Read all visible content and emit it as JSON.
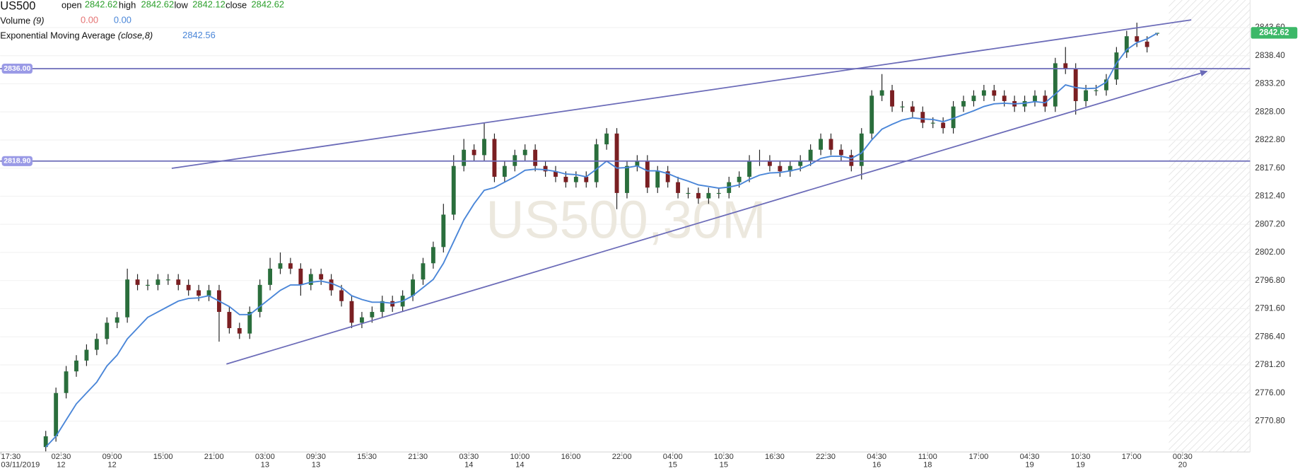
{
  "chart_data": {
    "type": "candlestick",
    "symbol": "US500",
    "watermark": "US500,30M",
    "open_label": "open",
    "high_label": "high",
    "low_label": "low",
    "close_label": "close",
    "up_color": "#2a6e3c",
    "down_color": "#7a1f22",
    "wick_color": "#222222",
    "open": [
      2766,
      2768,
      2776,
      2780,
      2782,
      2784,
      2786,
      2789,
      2790,
      2797,
      2796,
      2796,
      2797,
      2797,
      2796,
      2795,
      2794,
      2795,
      2791,
      2788,
      2787,
      2791,
      2796,
      2799,
      2800,
      2799,
      2796,
      2798,
      2797,
      2795,
      2793,
      2789,
      2790,
      2791,
      2793,
      2792,
      2794,
      2797,
      2800,
      2803,
      2809,
      2818,
      2821,
      2820,
      2823,
      2816,
      2818,
      2820,
      2821,
      2818,
      2817,
      2816,
      2815,
      2816,
      2815,
      2822,
      2824,
      2813,
      2818,
      2819,
      2814,
      2817,
      2815,
      2813,
      2813,
      2812,
      2813,
      2813,
      2815,
      2816,
      2819,
      2819,
      2818,
      2817,
      2818,
      2819,
      2821,
      2823,
      2821,
      2820,
      2818,
      2824,
      2831,
      2832,
      2829,
      2829,
      2828,
      2826,
      2826,
      2825,
      2829,
      2830,
      2831,
      2832,
      2831,
      2830,
      2829,
      2830,
      2831,
      2829,
      2837,
      2836,
      2830,
      2832,
      2832,
      2834,
      2839,
      2842,
      2841,
      2842.62
    ],
    "high": [
      2769,
      2777,
      2781,
      2783,
      2785,
      2787,
      2790,
      2791,
      2799,
      2798,
      2797,
      2798,
      2798,
      2798,
      2797,
      2796,
      2796,
      2796,
      2792,
      2789,
      2792,
      2797,
      2801,
      2802,
      2801,
      2800,
      2799,
      2799,
      2798,
      2796,
      2794,
      2791,
      2792,
      2794,
      2794,
      2795,
      2798,
      2801,
      2804,
      2811,
      2820,
      2823,
      2822,
      2826,
      2824,
      2819,
      2821,
      2822,
      2822,
      2819,
      2818,
      2817,
      2817,
      2817,
      2823,
      2825,
      2825,
      2819,
      2820,
      2820,
      2818,
      2818,
      2816,
      2814,
      2814,
      2814,
      2814,
      2816,
      2817,
      2820,
      2821,
      2820,
      2819,
      2819,
      2820,
      2822,
      2824,
      2824,
      2822,
      2821,
      2825,
      2832,
      2835,
      2833,
      2830,
      2830,
      2829,
      2827,
      2827,
      2830,
      2831,
      2832,
      2833,
      2833,
      2832,
      2831,
      2831,
      2832,
      2832,
      2838,
      2840,
      2837,
      2833,
      2833,
      2835,
      2840,
      2843,
      2844.5,
      2842,
      2842.62
    ],
    "low": [
      2765.2,
      2767,
      2775,
      2779,
      2781,
      2783,
      2785,
      2788,
      2789,
      2795,
      2795,
      2795,
      2796,
      2795,
      2794,
      2793,
      2793,
      2785.5,
      2787,
      2786,
      2786,
      2790,
      2795,
      2798,
      2798,
      2794,
      2795,
      2796,
      2794,
      2792,
      2788,
      2788,
      2789,
      2790,
      2791,
      2791,
      2793,
      2796,
      2799,
      2802,
      2808,
      2817,
      2819,
      2819,
      2815,
      2815,
      2817,
      2819,
      2817,
      2816,
      2815,
      2814,
      2814,
      2814,
      2814,
      2821,
      2810,
      2812,
      2817,
      2813,
      2813,
      2814,
      2812,
      2812,
      2811,
      2811,
      2812,
      2812,
      2814,
      2815,
      2818,
      2817,
      2816,
      2816,
      2817,
      2818,
      2820,
      2820,
      2819,
      2817,
      2815.5,
      2823,
      2830,
      2828,
      2828,
      2827,
      2825,
      2825,
      2824,
      2824,
      2828,
      2829,
      2830,
      2830,
      2829,
      2828,
      2828,
      2829,
      2828,
      2828,
      2835,
      2827.5,
      2829,
      2831,
      2831,
      2833,
      2838,
      2840,
      2839,
      2842.12
    ],
    "close": [
      2768,
      2776,
      2780,
      2782,
      2784,
      2786,
      2789,
      2790,
      2797,
      2796,
      2796,
      2797,
      2797,
      2796,
      2795,
      2794,
      2795,
      2791,
      2788,
      2787,
      2791,
      2796,
      2799,
      2800,
      2799,
      2796,
      2798,
      2797,
      2795,
      2793,
      2789,
      2790,
      2791,
      2793,
      2792,
      2794,
      2797,
      2800,
      2803,
      2809,
      2818,
      2821,
      2820,
      2823,
      2816,
      2818,
      2820,
      2821,
      2818,
      2817,
      2816,
      2815,
      2816,
      2815,
      2822,
      2824,
      2813,
      2818,
      2819,
      2814,
      2817,
      2815,
      2813,
      2813,
      2812,
      2813,
      2813,
      2815,
      2816,
      2819,
      2819,
      2818,
      2817,
      2818,
      2819,
      2821,
      2823,
      2821,
      2820,
      2818,
      2824,
      2831,
      2832,
      2829,
      2829,
      2828,
      2826,
      2826,
      2825,
      2829,
      2830,
      2831,
      2832,
      2831,
      2830,
      2829,
      2830,
      2831,
      2829,
      2837,
      2836,
      2830,
      2832,
      2832,
      2834,
      2839,
      2842,
      2841,
      2840,
      2842.62
    ],
    "volume": {
      "name": "Volume",
      "param": "(9)",
      "printed": [
        "0.00",
        "0.00"
      ]
    },
    "ema": {
      "name": "Exponential Moving Average",
      "param": "(close,8)",
      "color": "#4a86d8",
      "values": [
        2766,
        2768,
        2771,
        2774,
        2776,
        2778,
        2781,
        2783,
        2786,
        2788,
        2790,
        2791,
        2792,
        2793,
        2793.5,
        2793.6,
        2794,
        2793,
        2792,
        2790.5,
        2790.5,
        2792,
        2793.5,
        2795,
        2796,
        2796,
        2796.5,
        2796.7,
        2796.3,
        2795.5,
        2794,
        2793.3,
        2792.8,
        2792.8,
        2792.6,
        2793,
        2794,
        2795.5,
        2797,
        2800,
        2804,
        2808,
        2811,
        2813.5,
        2814,
        2815,
        2816,
        2817.2,
        2817.4,
        2817.3,
        2817,
        2816.5,
        2816.4,
        2816,
        2817.4,
        2818.9,
        2817.6,
        2817.7,
        2818,
        2817.1,
        2817.1,
        2816.6,
        2815.8,
        2815.2,
        2814.5,
        2814.2,
        2813.9,
        2814.1,
        2814.5,
        2815.5,
        2816.3,
        2816.7,
        2816.8,
        2817.1,
        2817.5,
        2818.3,
        2819.4,
        2819.8,
        2819.8,
        2819.4,
        2820.4,
        2822.8,
        2824.8,
        2825.7,
        2826.5,
        2826.9,
        2826.7,
        2826.6,
        2826.2,
        2826.8,
        2827.5,
        2828.2,
        2829,
        2829.5,
        2829.6,
        2829.5,
        2829.6,
        2829.9,
        2829.7,
        2831.3,
        2833,
        2832.5,
        2832.3,
        2832.4,
        2833.5,
        2837,
        2839.5,
        2840.8,
        2841.5,
        2842.56
      ]
    },
    "levels": [
      {
        "value": 2836,
        "label": "2836.00"
      },
      {
        "value": 2818.9,
        "label": "2818.90"
      }
    ],
    "level_color": "#6b6bb8",
    "last_price_color": "#3cb868",
    "ylim": [
      2765.1,
      2848.7
    ],
    "yticks": [
      {
        "value": 2770.8,
        "label": "2770.80"
      },
      {
        "value": 2776,
        "label": "2776.00"
      },
      {
        "value": 2781.2,
        "label": "2781.20"
      },
      {
        "value": 2786.4,
        "label": "2786.40"
      },
      {
        "value": 2791.6,
        "label": "2791.60"
      },
      {
        "value": 2796.8,
        "label": "2796.80"
      },
      {
        "value": 2802,
        "label": "2802.00"
      },
      {
        "value": 2807.2,
        "label": "2807.20"
      },
      {
        "value": 2812.4,
        "label": "2812.40"
      },
      {
        "value": 2817.6,
        "label": "2817.60"
      },
      {
        "value": 2822.8,
        "label": "2822.80"
      },
      {
        "value": 2828,
        "label": "2828.00"
      },
      {
        "value": 2833.2,
        "label": "2833.20"
      },
      {
        "value": 2838.4,
        "label": "2838.40"
      },
      {
        "value": 2843.6,
        "label": "2843.60"
      }
    ],
    "x_labels": [
      {
        "time": "17:30",
        "date": "03/11/2019"
      },
      {
        "time": "02:30",
        "date": "12"
      },
      {
        "time": "09:00",
        "date": "12"
      },
      {
        "time": "15:00"
      },
      {
        "time": "21:00"
      },
      {
        "time": "03:00",
        "date": "13"
      },
      {
        "time": "09:30",
        "date": "13"
      },
      {
        "time": "15:30"
      },
      {
        "time": "21:30"
      },
      {
        "time": "03:30",
        "date": "14"
      },
      {
        "time": "10:00",
        "date": "14"
      },
      {
        "time": "16:00"
      },
      {
        "time": "22:00"
      },
      {
        "time": "04:00",
        "date": "15"
      },
      {
        "time": "10:30",
        "date": "15"
      },
      {
        "time": "16:30"
      },
      {
        "time": "22:30"
      },
      {
        "time": "04:30",
        "date": "16"
      },
      {
        "time": "11:00",
        "date": "18"
      },
      {
        "time": "17:00"
      },
      {
        "time": "04:30",
        "date": "19"
      },
      {
        "time": "10:30",
        "date": "19"
      },
      {
        "time": "17:00"
      },
      {
        "time": "00:30",
        "date": "20"
      }
    ]
  }
}
